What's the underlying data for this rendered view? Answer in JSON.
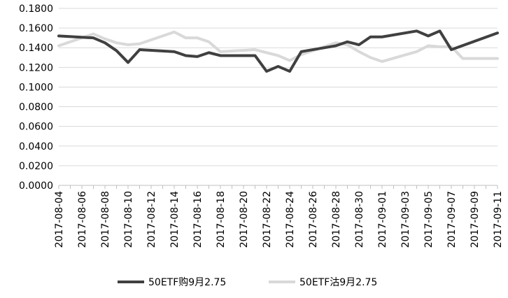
{
  "chart_data": {
    "type": "line",
    "title": "",
    "xlabel": "",
    "ylabel": "",
    "ylim": [
      0,
      0.18
    ],
    "y_ticks": [
      "0.0000",
      "0.0200",
      "0.0400",
      "0.0600",
      "0.0800",
      "0.1000",
      "0.1200",
      "0.1400",
      "0.1600",
      "0.1800"
    ],
    "y_tick_values": [
      0,
      0.02,
      0.04,
      0.06,
      0.08,
      0.1,
      0.12,
      0.14,
      0.16,
      0.18
    ],
    "grid": true,
    "legend_position": "bottom",
    "x_tick_labels": [
      "2017-08-04",
      "2017-08-06",
      "2017-08-08",
      "2017-08-10",
      "2017-08-12",
      "2017-08-14",
      "2017-08-16",
      "2017-08-18",
      "2017-08-20",
      "2017-08-22",
      "2017-08-24",
      "2017-08-26",
      "2017-08-28",
      "2017-08-30",
      "2017-09-01",
      "2017-09-03",
      "2017-09-05",
      "2017-09-07",
      "2017-09-09",
      "2017-09-11"
    ],
    "series": [
      {
        "name": "50ETF购9月2.75",
        "color": "#404040",
        "points": [
          {
            "x": "2017-08-04",
            "y": 0.152
          },
          {
            "x": "2017-08-07",
            "y": 0.15
          },
          {
            "x": "2017-08-08",
            "y": 0.145
          },
          {
            "x": "2017-08-09",
            "y": 0.137
          },
          {
            "x": "2017-08-10",
            "y": 0.125
          },
          {
            "x": "2017-08-11",
            "y": 0.138
          },
          {
            "x": "2017-08-14",
            "y": 0.136
          },
          {
            "x": "2017-08-15",
            "y": 0.132
          },
          {
            "x": "2017-08-16",
            "y": 0.131
          },
          {
            "x": "2017-08-17",
            "y": 0.135
          },
          {
            "x": "2017-08-18",
            "y": 0.132
          },
          {
            "x": "2017-08-21",
            "y": 0.132
          },
          {
            "x": "2017-08-22",
            "y": 0.116
          },
          {
            "x": "2017-08-23",
            "y": 0.121
          },
          {
            "x": "2017-08-24",
            "y": 0.116
          },
          {
            "x": "2017-08-25",
            "y": 0.136
          },
          {
            "x": "2017-08-28",
            "y": 0.142
          },
          {
            "x": "2017-08-29",
            "y": 0.146
          },
          {
            "x": "2017-08-30",
            "y": 0.143
          },
          {
            "x": "2017-08-31",
            "y": 0.151
          },
          {
            "x": "2017-09-01",
            "y": 0.151
          },
          {
            "x": "2017-09-04",
            "y": 0.157
          },
          {
            "x": "2017-09-05",
            "y": 0.152
          },
          {
            "x": "2017-09-06",
            "y": 0.157
          },
          {
            "x": "2017-09-07",
            "y": 0.138
          },
          {
            "x": "2017-09-11",
            "y": 0.155
          }
        ]
      },
      {
        "name": "50ETF沽9月2.75",
        "color": "#d9d9d9",
        "points": [
          {
            "x": "2017-08-04",
            "y": 0.142
          },
          {
            "x": "2017-08-07",
            "y": 0.154
          },
          {
            "x": "2017-08-08",
            "y": 0.149
          },
          {
            "x": "2017-08-09",
            "y": 0.145
          },
          {
            "x": "2017-08-10",
            "y": 0.143
          },
          {
            "x": "2017-08-11",
            "y": 0.144
          },
          {
            "x": "2017-08-14",
            "y": 0.156
          },
          {
            "x": "2017-08-15",
            "y": 0.15
          },
          {
            "x": "2017-08-16",
            "y": 0.15
          },
          {
            "x": "2017-08-17",
            "y": 0.146
          },
          {
            "x": "2017-08-18",
            "y": 0.136
          },
          {
            "x": "2017-08-21",
            "y": 0.138
          },
          {
            "x": "2017-08-22",
            "y": 0.135
          },
          {
            "x": "2017-08-23",
            "y": 0.132
          },
          {
            "x": "2017-08-24",
            "y": 0.127
          },
          {
            "x": "2017-08-25",
            "y": 0.133
          },
          {
            "x": "2017-08-28",
            "y": 0.145
          },
          {
            "x": "2017-08-29",
            "y": 0.143
          },
          {
            "x": "2017-08-30",
            "y": 0.136
          },
          {
            "x": "2017-08-31",
            "y": 0.13
          },
          {
            "x": "2017-09-01",
            "y": 0.126
          },
          {
            "x": "2017-09-04",
            "y": 0.136
          },
          {
            "x": "2017-09-05",
            "y": 0.142
          },
          {
            "x": "2017-09-06",
            "y": 0.141
          },
          {
            "x": "2017-09-07",
            "y": 0.141
          },
          {
            "x": "2017-09-08",
            "y": 0.129
          },
          {
            "x": "2017-09-11",
            "y": 0.129
          }
        ]
      }
    ]
  }
}
